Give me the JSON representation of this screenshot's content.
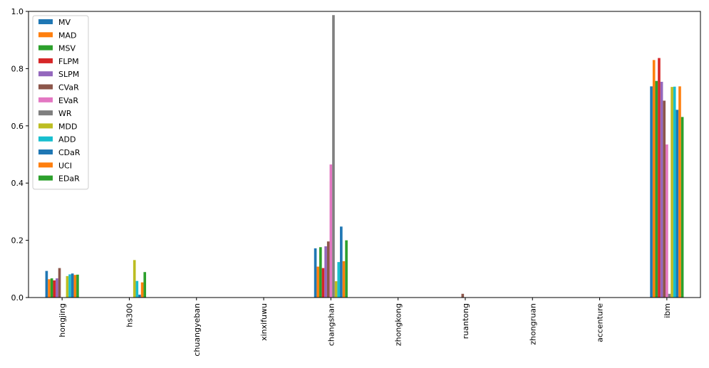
{
  "chart_data": {
    "type": "bar",
    "title": "",
    "xlabel": "",
    "ylabel": "",
    "ylim": [
      0,
      1.0
    ],
    "yticks": [
      0.0,
      0.2,
      0.4,
      0.6,
      0.8,
      1.0
    ],
    "ytick_labels": [
      "0.0",
      "0.2",
      "0.4",
      "0.6",
      "0.8",
      "1.0"
    ],
    "grid": false,
    "legend_position": "top-left",
    "categories": [
      "hongjing",
      "hs300",
      "chuangyeban",
      "xinxifuwu",
      "changshan",
      "zhongkong",
      "ruantong",
      "zhongruan",
      "accenture",
      "ibm"
    ],
    "series": [
      {
        "name": "MV",
        "color": "#1f77b4",
        "values": [
          0.093,
          0.0,
          0.0,
          0.0,
          0.172,
          0.0,
          0.0,
          0.0,
          0.0,
          0.738
        ]
      },
      {
        "name": "MAD",
        "color": "#ff7f0e",
        "values": [
          0.064,
          0.0,
          0.0,
          0.0,
          0.108,
          0.0,
          0.0,
          0.0,
          0.0,
          0.83
        ]
      },
      {
        "name": "MSV",
        "color": "#2ca02c",
        "values": [
          0.067,
          0.0,
          0.0,
          0.0,
          0.176,
          0.0,
          0.0,
          0.0,
          0.0,
          0.757
        ]
      },
      {
        "name": "FLPM",
        "color": "#d62728",
        "values": [
          0.06,
          0.0,
          0.0,
          0.0,
          0.103,
          0.0,
          0.0,
          0.0,
          0.0,
          0.837
        ]
      },
      {
        "name": "SLPM",
        "color": "#9467bd",
        "values": [
          0.067,
          0.0,
          0.0,
          0.0,
          0.179,
          0.0,
          0.0,
          0.0,
          0.0,
          0.754
        ]
      },
      {
        "name": "CVaR",
        "color": "#8c564b",
        "values": [
          0.103,
          0.0,
          0.0,
          0.0,
          0.196,
          0.0,
          0.013,
          0.0,
          0.0,
          0.688
        ]
      },
      {
        "name": "EVaR",
        "color": "#e377c2",
        "values": [
          0.0,
          0.0,
          0.0,
          0.0,
          0.465,
          0.0,
          0.0,
          0.0,
          0.0,
          0.535
        ]
      },
      {
        "name": "WR",
        "color": "#7f7f7f",
        "values": [
          0.0,
          0.0,
          0.0,
          0.0,
          0.987,
          0.0,
          0.0,
          0.0,
          0.0,
          0.013
        ]
      },
      {
        "name": "MDD",
        "color": "#bcbd22",
        "values": [
          0.075,
          0.131,
          0.0,
          0.0,
          0.057,
          0.0,
          0.0,
          0.0,
          0.0,
          0.736
        ]
      },
      {
        "name": "ADD",
        "color": "#17becf",
        "values": [
          0.081,
          0.058,
          0.0,
          0.0,
          0.124,
          0.0,
          0.0,
          0.0,
          0.0,
          0.737
        ]
      },
      {
        "name": "CDaR",
        "color": "#1f77b4",
        "values": [
          0.084,
          0.01,
          0.0,
          0.0,
          0.248,
          0.0,
          0.0,
          0.0,
          0.0,
          0.656
        ]
      },
      {
        "name": "UCI",
        "color": "#ff7f0e",
        "values": [
          0.079,
          0.053,
          0.0,
          0.0,
          0.127,
          0.0,
          0.0,
          0.0,
          0.0,
          0.738
        ]
      },
      {
        "name": "EDaR",
        "color": "#2ca02c",
        "values": [
          0.08,
          0.089,
          0.0,
          0.0,
          0.2,
          0.0,
          0.0,
          0.0,
          0.0,
          0.631
        ]
      }
    ]
  }
}
